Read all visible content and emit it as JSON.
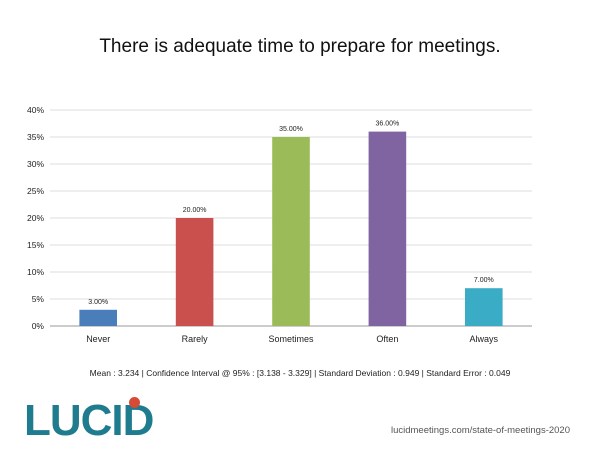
{
  "slide": {
    "title": "There is adequate time to prepare for meetings.",
    "stats": "Mean : 3.234  |  Confidence Interval @ 95% : [3.138 - 3.329]  |  Standard Deviation : 0.949  |  Standard Error : 0.049",
    "logo_text": "LUCID",
    "url": "lucidmeetings.com/state-of-meetings-2020"
  },
  "chart_data": {
    "type": "bar",
    "title": "There is adequate time to prepare for meetings.",
    "xlabel": "",
    "ylabel": "",
    "categories": [
      "Never",
      "Rarely",
      "Sometimes",
      "Often",
      "Always"
    ],
    "values": [
      3.0,
      20.0,
      35.0,
      36.0,
      7.0
    ],
    "data_labels": [
      "3.00%",
      "20.00%",
      "35.00%",
      "36.00%",
      "7.00%"
    ],
    "colors": [
      "#4a7ebb",
      "#c9504c",
      "#9bbb59",
      "#8064a2",
      "#3aacc6"
    ],
    "ylim": [
      0,
      40
    ],
    "yticks": [
      0,
      5,
      10,
      15,
      20,
      25,
      30,
      35,
      40
    ],
    "ytick_labels": [
      "0%",
      "5%",
      "10%",
      "15%",
      "20%",
      "25%",
      "30%",
      "35%",
      "40%"
    ],
    "grid": true,
    "legend": "none"
  }
}
